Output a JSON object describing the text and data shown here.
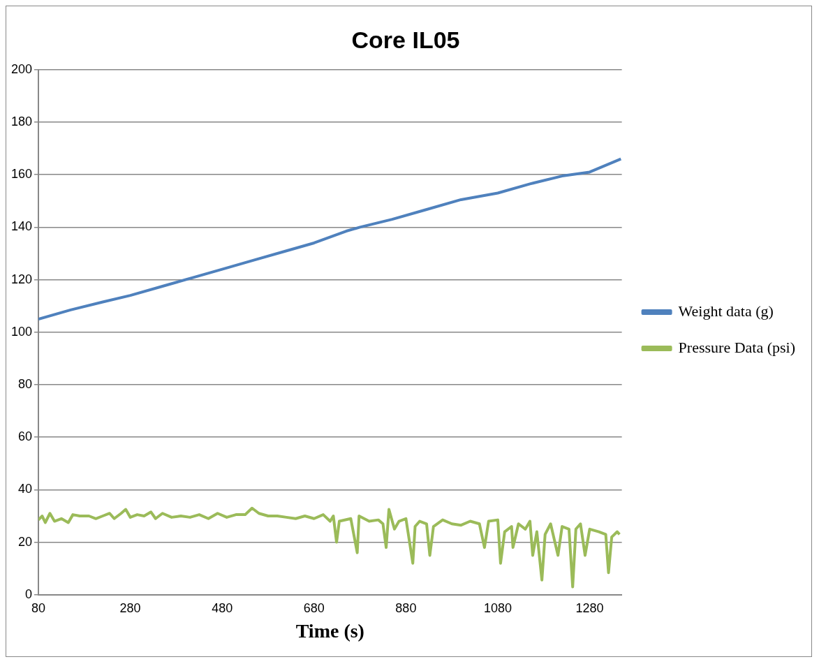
{
  "chart_data": {
    "type": "line",
    "title": "Core IL05",
    "xlabel": "Time (s)",
    "xlim": [
      80,
      1350
    ],
    "xticks": [
      80,
      280,
      480,
      680,
      880,
      1080,
      1280
    ],
    "ylim": [
      0,
      200
    ],
    "yticks": [
      0,
      20,
      40,
      60,
      80,
      100,
      120,
      140,
      160,
      180,
      200
    ],
    "grid": "y",
    "legend": "right",
    "marker": "none",
    "line_style": "solid",
    "series": [
      {
        "name": "Weight data (g)",
        "color": "#4f81bd",
        "x": [
          80,
          150,
          220,
          280,
          350,
          420,
          480,
          550,
          620,
          680,
          750,
          780,
          850,
          920,
          1000,
          1080,
          1150,
          1220,
          1280,
          1348
        ],
        "values": [
          105,
          108.5,
          111.5,
          114,
          117.5,
          121,
          124,
          127.5,
          131,
          134,
          138.5,
          140,
          143,
          146.5,
          150.5,
          153,
          156.5,
          159.5,
          161,
          166
        ]
      },
      {
        "name": "Pressure Data (psi)",
        "color": "#9bbb59",
        "x": [
          80,
          88,
          95,
          105,
          115,
          130,
          145,
          155,
          170,
          190,
          205,
          220,
          235,
          245,
          260,
          270,
          280,
          295,
          310,
          325,
          335,
          350,
          370,
          390,
          410,
          430,
          450,
          470,
          490,
          510,
          530,
          545,
          560,
          580,
          600,
          620,
          640,
          660,
          680,
          700,
          715,
          722,
          729,
          735,
          760,
          774,
          778,
          800,
          820,
          830,
          837,
          843,
          855,
          865,
          880,
          895,
          900,
          910,
          925,
          932,
          940,
          960,
          980,
          1000,
          1020,
          1040,
          1051,
          1060,
          1080,
          1086,
          1095,
          1110,
          1113,
          1125,
          1140,
          1150,
          1156,
          1165,
          1176,
          1183,
          1195,
          1211,
          1220,
          1235,
          1243,
          1250,
          1260,
          1270,
          1280,
          1300,
          1315,
          1321,
          1328,
          1340,
          1345
        ],
        "values": [
          28.5,
          30,
          27.5,
          31,
          28,
          29,
          27.5,
          30.5,
          30,
          30,
          29,
          30,
          31,
          29,
          31,
          32.5,
          29.5,
          30.5,
          30,
          31.5,
          29,
          31,
          29.5,
          30,
          29.5,
          30.5,
          29,
          31,
          29.5,
          30.5,
          30.5,
          33,
          31,
          30,
          30,
          29.5,
          29,
          30,
          29,
          30.5,
          28,
          30,
          20,
          28,
          29,
          16,
          30,
          28,
          28.5,
          27,
          18,
          32.5,
          25,
          28,
          29,
          12,
          26,
          28,
          27,
          15,
          26,
          28.5,
          27,
          26.5,
          28,
          27,
          18,
          28,
          28.5,
          12,
          24,
          26,
          18,
          27,
          25,
          28,
          15,
          24,
          5.6,
          23,
          27,
          15,
          26,
          25,
          3,
          25,
          27,
          15,
          25,
          24,
          23,
          8.4,
          22,
          24,
          23
        ]
      }
    ]
  }
}
